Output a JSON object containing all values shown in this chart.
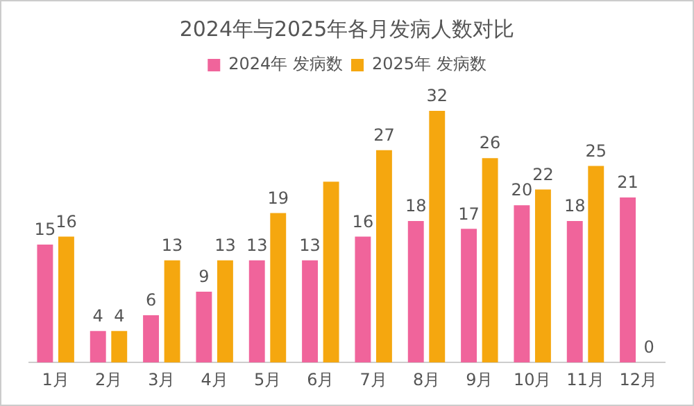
{
  "chart_data": {
    "type": "bar",
    "title": "2024年与2025年各月发病人数对比",
    "categories": [
      "1月",
      "2月",
      "3月",
      "4月",
      "5月",
      "6月",
      "7月",
      "8月",
      "9月",
      "10月",
      "11月",
      "12月"
    ],
    "series": [
      {
        "name": "2024年 发病数",
        "color": "#f0649b",
        "values": [
          15,
          4,
          6,
          9,
          13,
          13,
          16,
          18,
          17,
          20,
          18,
          21
        ],
        "value_labels": [
          "15",
          "4",
          "6",
          "9",
          "13",
          "13",
          "16",
          "18",
          "17",
          "20",
          "18",
          "21"
        ]
      },
      {
        "name": "2025年 发病数",
        "color": "#f5a70f",
        "values": [
          16,
          4,
          13,
          13,
          19,
          23,
          27,
          32,
          26,
          22,
          25,
          0
        ],
        "value_labels": [
          "16",
          "4",
          "13",
          "13",
          "19",
          null,
          "27",
          "32",
          "26",
          "22",
          "25",
          "0"
        ]
      }
    ],
    "legend": "top",
    "grid": false
  }
}
